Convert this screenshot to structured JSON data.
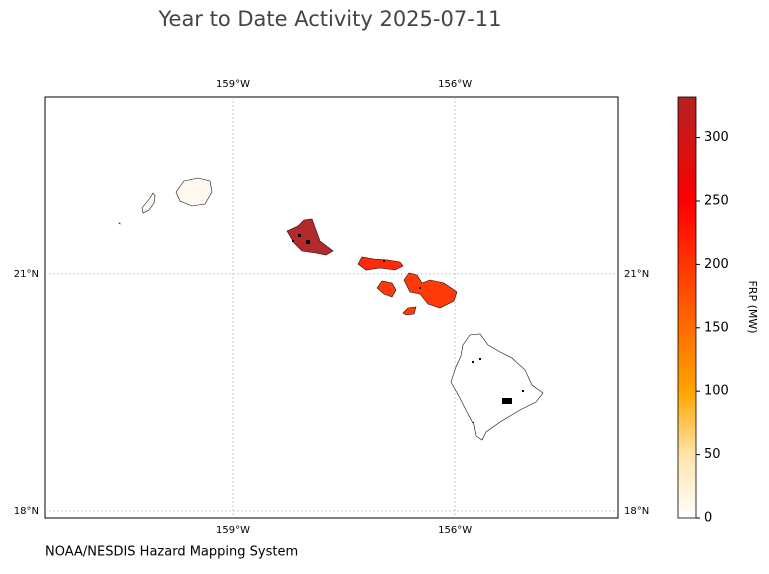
{
  "title": "Year to Date Activity 2025-07-11",
  "map": {
    "xlim": [
      -161.54,
      -153.8
    ],
    "ylim": [
      17.91,
      23.24
    ],
    "xticks": [
      {
        "value": -159,
        "label": "159°W"
      },
      {
        "value": -156,
        "label": "156°W"
      }
    ],
    "yticks": [
      {
        "value": 21,
        "label": "21°N"
      },
      {
        "value": 18,
        "label": "18°N"
      }
    ]
  },
  "colorbar": {
    "label": "FRP (MW)",
    "lim": [
      0,
      332
    ],
    "ticks": [
      0,
      50,
      100,
      150,
      200,
      250,
      300
    ]
  },
  "credit": "NOAA/NESDIS Hazard Mapping System"
}
